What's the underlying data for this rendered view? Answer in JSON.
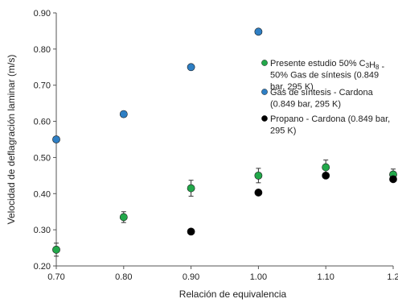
{
  "chart_data": {
    "type": "scatter",
    "xlabel": "Relación de equivalencia",
    "ylabel": "Velocidad de deflagración laminar (m/s)",
    "xlim": [
      0.7,
      1.2
    ],
    "ylim": [
      0.2,
      0.9
    ],
    "x_ticks": [
      "0.70",
      "0.80",
      "0.90",
      "1.00",
      "1.10",
      "1.2"
    ],
    "x_tick_values": [
      0.7,
      0.8,
      0.9,
      1.0,
      1.1,
      1.2
    ],
    "y_ticks": [
      "0.20",
      "0.30",
      "0.40",
      "0.50",
      "0.60",
      "0.70",
      "0.80",
      "0.90"
    ],
    "y_tick_values": [
      0.2,
      0.3,
      0.4,
      0.5,
      0.6,
      0.7,
      0.8,
      0.9
    ],
    "grid": false,
    "legend_position": "right",
    "series": [
      {
        "name": "Presente estudio 50% C3H8 - 50% Gas de síntesis (0.849 bar, 295 K)",
        "legend_lines": [
          {
            "pre": "Presente estudio 50% C",
            "sub1": "3",
            "mid": "H",
            "sub2": "8",
            "post": " -"
          },
          {
            "pre": "50% Gas de síntesis (0.849",
            "sub1": "",
            "mid": "",
            "sub2": "",
            "post": ""
          },
          {
            "pre": "bar, 295 K)",
            "sub1": "",
            "mid": "",
            "sub2": "",
            "post": ""
          }
        ],
        "color": "#22a84a",
        "x": [
          0.7,
          0.8,
          0.9,
          1.0,
          1.1,
          1.2
        ],
        "y": [
          0.245,
          0.335,
          0.415,
          0.45,
          0.473,
          0.453
        ],
        "err": [
          0.018,
          0.015,
          0.022,
          0.02,
          0.02,
          0.015
        ]
      },
      {
        "name": "Gas de síntesis - Cardona (0.849 bar, 295 K)",
        "legend_lines": [
          {
            "pre": "Gas de síntesis - Cardona",
            "sub1": "",
            "mid": "",
            "sub2": "",
            "post": ""
          },
          {
            "pre": "(0.849 bar, 295 K)",
            "sub1": "",
            "mid": "",
            "sub2": "",
            "post": ""
          }
        ],
        "color": "#2e7fc4",
        "x": [
          0.7,
          0.8,
          0.9,
          1.0
        ],
        "y": [
          0.55,
          0.62,
          0.75,
          0.848
        ],
        "err": []
      },
      {
        "name": "Propano - Cardona (0.849 bar, 295 K)",
        "legend_lines": [
          {
            "pre": "Propano - Cardona (0.849 bar,",
            "sub1": "",
            "mid": "",
            "sub2": "",
            "post": ""
          },
          {
            "pre": "295 K)",
            "sub1": "",
            "mid": "",
            "sub2": "",
            "post": ""
          }
        ],
        "color": "#000000",
        "x": [
          0.9,
          1.0,
          1.1,
          1.2
        ],
        "y": [
          0.295,
          0.403,
          0.45,
          0.44
        ],
        "err": []
      }
    ]
  }
}
